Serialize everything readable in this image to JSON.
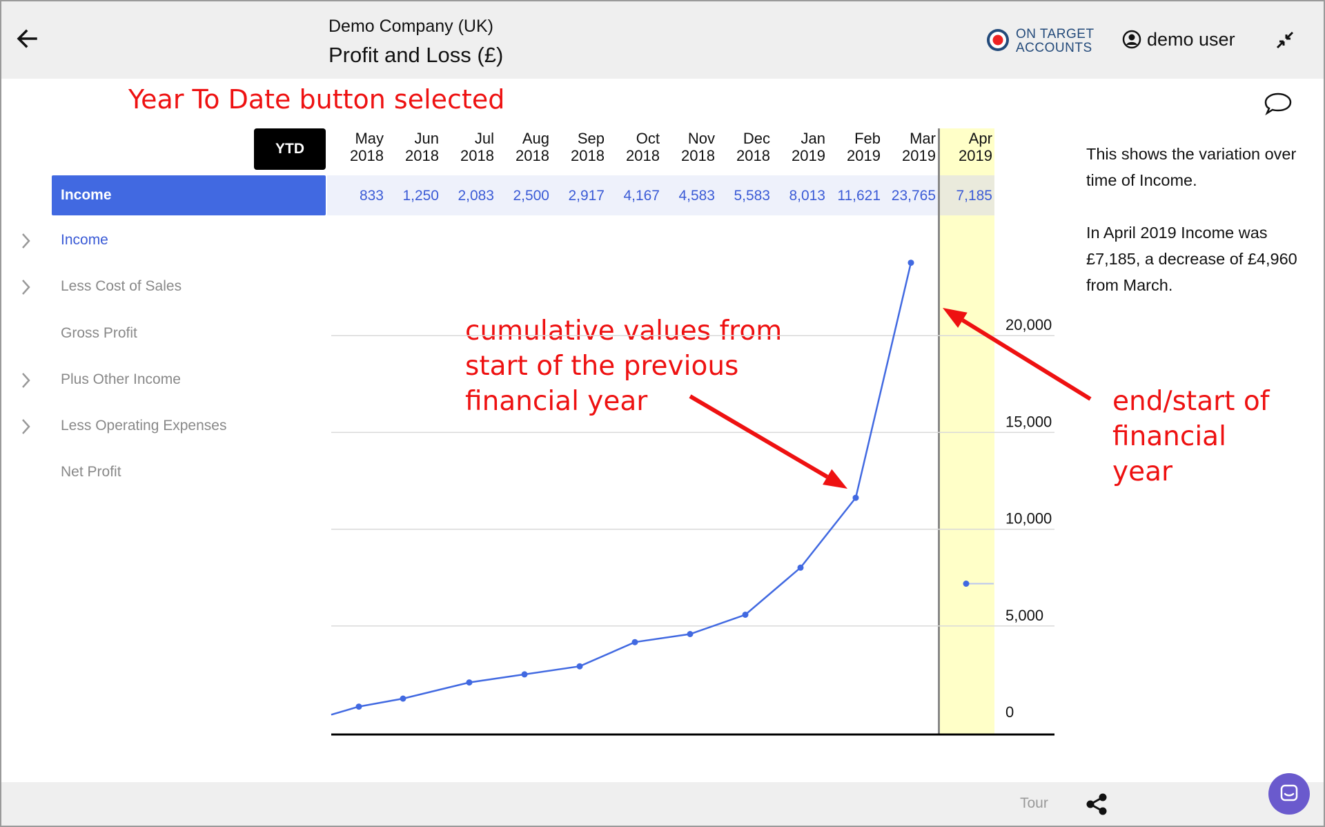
{
  "header": {
    "company": "Demo Company (UK)",
    "title": "Profit and Loss (£)",
    "logo_line1": "ON TARGET",
    "logo_line2": "ACCOUNTS",
    "user": "demo user"
  },
  "annotations": {
    "ytd": "Year To Date button selected",
    "cumulative": "cumulative values from start of the previous financial year",
    "fy": "end/start of financial year"
  },
  "toolbar": {
    "ytd_label": "YTD"
  },
  "selected_row": {
    "label": "Income"
  },
  "sidebar": {
    "items": [
      {
        "label": "Income",
        "active": true,
        "expandable": true
      },
      {
        "label": "Less Cost of Sales",
        "active": false,
        "expandable": true
      },
      {
        "label": "Gross Profit",
        "active": false,
        "expandable": false
      },
      {
        "label": "Plus Other Income",
        "active": false,
        "expandable": true
      },
      {
        "label": "Less Operating Expenses",
        "active": false,
        "expandable": true
      },
      {
        "label": "Net Profit",
        "active": false,
        "expandable": false
      }
    ]
  },
  "description": {
    "p1": "This shows the variation over time of Income.",
    "p2": "In April 2019 Income was £7,185, a decrease of £4,960 from March."
  },
  "footer": {
    "tour": "Tour"
  },
  "colors": {
    "accent": "#4169e1",
    "highlight": "#ffffc8",
    "annotation": "#ee1111"
  },
  "chart_data": {
    "type": "line",
    "categories": [
      "May 2018",
      "Jun 2018",
      "Jul 2018",
      "Aug 2018",
      "Sep 2018",
      "Oct 2018",
      "Nov 2018",
      "Dec 2018",
      "Jan 2019",
      "Feb 2019",
      "Mar 2019",
      "Apr 2019"
    ],
    "month_labels": [
      [
        "May",
        "2018"
      ],
      [
        "Jun",
        "2018"
      ],
      [
        "Jul",
        "2018"
      ],
      [
        "Aug",
        "2018"
      ],
      [
        "Sep",
        "2018"
      ],
      [
        "Oct",
        "2018"
      ],
      [
        "Nov",
        "2018"
      ],
      [
        "Dec",
        "2018"
      ],
      [
        "Jan",
        "2019"
      ],
      [
        "Feb",
        "2019"
      ],
      [
        "Mar",
        "2019"
      ],
      [
        "Apr",
        "2019"
      ]
    ],
    "value_labels": [
      "833",
      "1,250",
      "2,083",
      "2,500",
      "2,917",
      "4,167",
      "4,583",
      "5,583",
      "8,013",
      "11,621",
      "23,765",
      "7,185"
    ],
    "series": [
      {
        "values": [
          833,
          1250,
          2083,
          2500,
          2917,
          4167,
          4583,
          5583,
          8013,
          11621,
          23765,
          7185
        ]
      }
    ],
    "highlighted_category": "Apr 2019",
    "financial_year_break_before": "Apr 2019",
    "ylim": [
      0,
      25000
    ],
    "yticks": [
      0,
      5000,
      10000,
      15000,
      20000
    ],
    "ytick_labels": [
      "0",
      "5,000",
      "10,000",
      "15,000",
      "20,000"
    ],
    "grid": true
  }
}
